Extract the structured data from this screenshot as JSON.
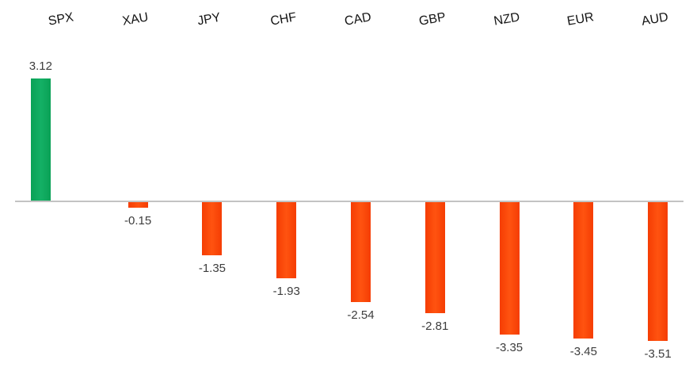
{
  "chart_data": {
    "type": "bar",
    "title": "",
    "xlabel": "",
    "ylabel": "",
    "categories": [
      "SPX",
      "XAU",
      "JPY",
      "CHF",
      "CAD",
      "GBP",
      "NZD",
      "EUR",
      "AUD"
    ],
    "values": [
      3.12,
      -0.15,
      -1.35,
      -1.93,
      -2.54,
      -2.81,
      -3.35,
      -3.45,
      -3.51
    ],
    "data_labels": [
      "3.12",
      "-0.15",
      "-1.35",
      "-1.93",
      "-2.54",
      "-2.81",
      "-3.35",
      "-3.45",
      "-3.51"
    ],
    "series": [
      {
        "name": "positive",
        "color": "#0CA85B",
        "values": [
          3.12,
          null,
          null,
          null,
          null,
          null,
          null,
          null,
          null
        ]
      },
      {
        "name": "negative",
        "color": "#FB420A",
        "values": [
          null,
          -0.15,
          -1.35,
          -1.93,
          -2.54,
          -2.81,
          -3.35,
          -3.45,
          -3.51
        ]
      }
    ],
    "ylim": [
      -3.51,
      3.12
    ],
    "baseline": 0,
    "grid": false,
    "legend": "none",
    "orientation": "vertical",
    "data_labels_shown": true,
    "category_label_rotation_deg": -10,
    "colors": {
      "positive_bar": "#0CA85B",
      "negative_bar": "#FB420A",
      "axis_line": "#C3C3C3",
      "category_text": "#141414",
      "value_text": "#3D3D3D",
      "background": "#FFFFFF"
    }
  }
}
